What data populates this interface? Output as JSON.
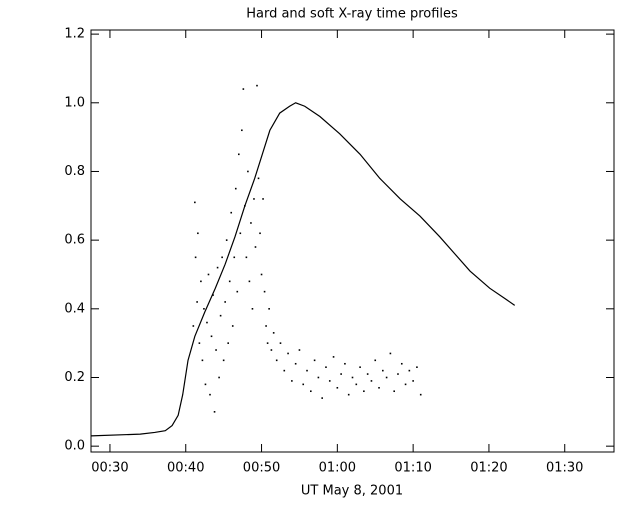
{
  "chart_data": {
    "title": "Hard and soft X-ray time profiles",
    "x_label": "UT May 8, 2001",
    "xlim": [
      27.5,
      96.5
    ],
    "xticks": [
      {
        "value": 30,
        "label": "00:30"
      },
      {
        "value": 40,
        "label": "00:40"
      },
      {
        "value": 50,
        "label": "00:50"
      },
      {
        "value": 60,
        "label": "01:00"
      },
      {
        "value": 70,
        "label": "01:10"
      },
      {
        "value": 80,
        "label": "01:20"
      },
      {
        "value": 90,
        "label": "01:30"
      }
    ],
    "ylim": [
      -0.017,
      1.212
    ],
    "yticks": [
      {
        "value": 0,
        "label": "0.0"
      },
      0.2,
      0.4,
      0.6,
      0.8,
      {
        "value": 1,
        "label": "1.0"
      },
      1.2
    ],
    "series": [
      {
        "type": "line",
        "color": "#000000",
        "x": [
          27.5,
          34.0,
          35.9,
          37.3,
          38.2,
          39.0,
          39.6,
          40.3,
          41.2,
          42.5,
          43.9,
          45.2,
          46.5,
          47.8,
          49.1,
          50.1,
          51.1,
          52.4,
          53.7,
          54.5,
          55.7,
          57.7,
          60.3,
          63.0,
          65.6,
          68.3,
          70.9,
          73.5,
          75.5,
          77.5,
          80.1,
          82.1,
          83.4
        ],
        "values": [
          0.03,
          0.035,
          0.04,
          0.045,
          0.06,
          0.09,
          0.15,
          0.25,
          0.32,
          0.39,
          0.46,
          0.53,
          0.61,
          0.7,
          0.78,
          0.85,
          0.92,
          0.97,
          0.99,
          1.0,
          0.99,
          0.96,
          0.91,
          0.85,
          0.78,
          0.72,
          0.67,
          0.61,
          0.56,
          0.51,
          0.46,
          0.43,
          0.41
        ]
      },
      {
        "type": "scatter",
        "color": "#000000",
        "x": [
          41.0,
          41.2,
          41.3,
          41.5,
          41.6,
          41.8,
          42.0,
          42.2,
          42.4,
          42.6,
          42.8,
          43.0,
          43.2,
          43.4,
          43.6,
          43.8,
          44.0,
          44.2,
          44.4,
          44.6,
          44.8,
          45.0,
          45.2,
          45.4,
          45.6,
          45.8,
          46.0,
          46.2,
          46.4,
          46.6,
          46.8,
          47.0,
          47.2,
          47.4,
          47.6,
          47.8,
          48.0,
          48.2,
          48.4,
          48.6,
          48.8,
          49.0,
          49.2,
          49.4,
          49.6,
          49.8,
          50.0,
          50.2,
          50.4,
          50.6,
          50.8,
          51.0,
          51.3,
          51.6,
          52.0,
          52.5,
          53.0,
          53.5,
          54.0,
          54.5,
          55.0,
          55.5,
          56.0,
          56.5,
          57.0,
          57.5,
          58.0,
          58.5,
          59.0,
          59.5,
          60.0,
          60.5,
          61.0,
          61.5,
          62.0,
          62.5,
          63.0,
          63.5,
          64.0,
          64.5,
          65.0,
          65.5,
          66.0,
          66.5,
          67.0,
          67.5,
          68.0,
          68.5,
          69.0,
          69.5,
          70.0,
          70.5,
          71.0
        ],
        "values": [
          0.35,
          0.71,
          0.55,
          0.42,
          0.62,
          0.3,
          0.48,
          0.25,
          0.4,
          0.18,
          0.36,
          0.5,
          0.15,
          0.32,
          0.44,
          0.1,
          0.28,
          0.52,
          0.2,
          0.38,
          0.55,
          0.25,
          0.42,
          0.6,
          0.3,
          0.48,
          0.68,
          0.35,
          0.55,
          0.75,
          0.45,
          0.85,
          0.62,
          0.92,
          1.04,
          0.7,
          0.55,
          0.8,
          0.48,
          0.65,
          0.4,
          0.72,
          0.58,
          1.05,
          0.78,
          0.62,
          0.5,
          0.72,
          0.45,
          0.35,
          0.3,
          0.4,
          0.28,
          0.33,
          0.25,
          0.3,
          0.22,
          0.27,
          0.19,
          0.24,
          0.28,
          0.18,
          0.22,
          0.16,
          0.25,
          0.2,
          0.14,
          0.23,
          0.19,
          0.26,
          0.17,
          0.21,
          0.24,
          0.15,
          0.2,
          0.18,
          0.23,
          0.16,
          0.21,
          0.19,
          0.25,
          0.17,
          0.22,
          0.2,
          0.27,
          0.16,
          0.21,
          0.24,
          0.18,
          0.22,
          0.19,
          0.23,
          0.15
        ]
      }
    ]
  }
}
